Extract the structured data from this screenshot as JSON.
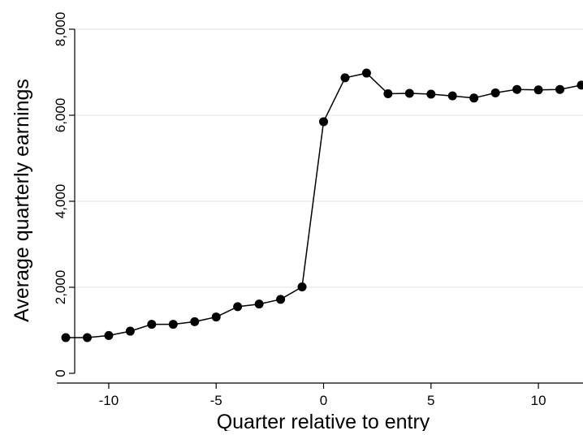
{
  "colors": {
    "background": "#ffffff",
    "gridline": "#e6e6e6",
    "axis": "#000000",
    "series_line": "#000000",
    "series_marker": "#000000"
  },
  "chart_data": {
    "type": "line",
    "title": "",
    "xlabel": "Quarter relative to entry",
    "ylabel": "Average quarterly earnings",
    "xlim": [
      -12,
      12
    ],
    "ylim": [
      0,
      8000
    ],
    "grid": true,
    "legend": "none",
    "x_ticks": [
      -10,
      -5,
      0,
      5,
      10
    ],
    "x_tick_labels": [
      "-10",
      "-5",
      "0",
      "5",
      "10"
    ],
    "y_ticks": [
      0,
      2000,
      4000,
      6000,
      8000
    ],
    "y_tick_labels": [
      "0",
      "2,000",
      "4,000",
      "6,000",
      "8,000"
    ],
    "series": [
      {
        "x": [
          -12,
          -11,
          -10,
          -9,
          -8,
          -7,
          -6,
          -5,
          -4,
          -3,
          -2,
          -1,
          0,
          1,
          2,
          3,
          4,
          5,
          6,
          7,
          8,
          9,
          10,
          11,
          12
        ],
        "y": [
          830,
          830,
          880,
          980,
          1140,
          1140,
          1200,
          1310,
          1550,
          1610,
          1720,
          2010,
          5850,
          6870,
          6980,
          6500,
          6510,
          6490,
          6450,
          6400,
          6520,
          6600,
          6590,
          6600,
          6700
        ]
      }
    ]
  }
}
